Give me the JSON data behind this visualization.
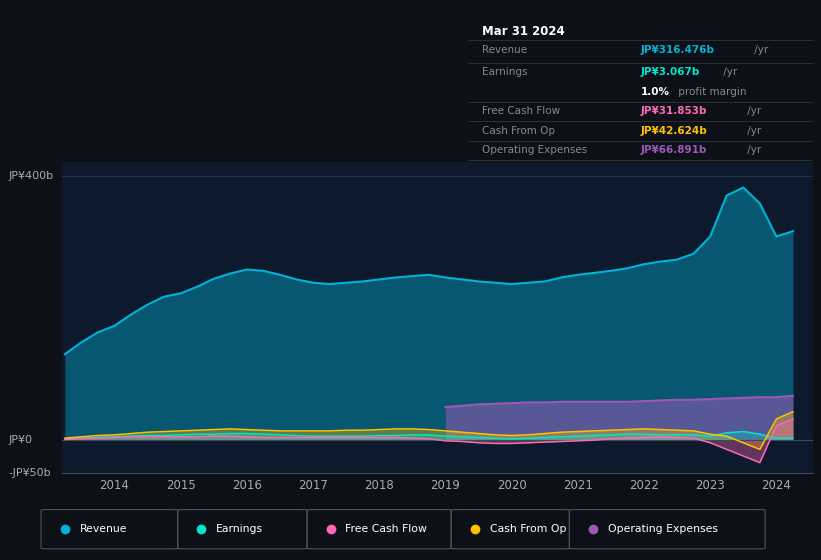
{
  "background_color": "#0d1117",
  "plot_bg_color": "#0d1a2d",
  "ylim": [
    -50,
    420
  ],
  "xlim_start": 2013.2,
  "xlim_end": 2024.55,
  "x_ticks": [
    2014,
    2015,
    2016,
    2017,
    2018,
    2019,
    2020,
    2021,
    2022,
    2023,
    2024
  ],
  "colors": {
    "revenue": "#00b4d8",
    "earnings": "#00e5cc",
    "free_cash_flow": "#ff69b4",
    "cash_from_op": "#ffc300",
    "operating_expenses": "#9b59b6"
  },
  "legend_items": [
    "Revenue",
    "Earnings",
    "Free Cash Flow",
    "Cash From Op",
    "Operating Expenses"
  ],
  "legend_colors": [
    "#00b4d8",
    "#00e5cc",
    "#ff69b4",
    "#ffc300",
    "#9b59b6"
  ],
  "info_box": {
    "date": "Mar 31 2024",
    "revenue_label": "Revenue",
    "revenue_value": "JP¥316.476b",
    "earnings_label": "Earnings",
    "earnings_value": "JP¥3.067b",
    "profit_pct": "1.0%",
    "profit_text": " profit margin",
    "fcf_label": "Free Cash Flow",
    "fcf_value": "JP¥31.853b",
    "cfo_label": "Cash From Op",
    "cfo_value": "JP¥42.624b",
    "opex_label": "Operating Expenses",
    "opex_value": "JP¥66.891b"
  },
  "revenue_x": [
    2013.25,
    2013.5,
    2013.75,
    2014.0,
    2014.25,
    2014.5,
    2014.75,
    2015.0,
    2015.25,
    2015.5,
    2015.75,
    2016.0,
    2016.25,
    2016.5,
    2016.75,
    2017.0,
    2017.25,
    2017.5,
    2017.75,
    2018.0,
    2018.25,
    2018.5,
    2018.75,
    2019.0,
    2019.25,
    2019.5,
    2019.75,
    2020.0,
    2020.25,
    2020.5,
    2020.75,
    2021.0,
    2021.25,
    2021.5,
    2021.75,
    2022.0,
    2022.25,
    2022.5,
    2022.75,
    2023.0,
    2023.25,
    2023.5,
    2023.75,
    2024.0,
    2024.25
  ],
  "revenue_y": [
    130,
    148,
    163,
    173,
    190,
    205,
    217,
    222,
    232,
    244,
    252,
    258,
    256,
    250,
    243,
    238,
    236,
    238,
    240,
    243,
    246,
    248,
    250,
    246,
    243,
    240,
    238,
    236,
    238,
    240,
    246,
    250,
    253,
    256,
    260,
    266,
    270,
    273,
    282,
    308,
    370,
    382,
    358,
    308,
    316
  ],
  "earnings_x": [
    2013.25,
    2013.5,
    2013.75,
    2014.0,
    2014.25,
    2014.5,
    2014.75,
    2015.0,
    2015.25,
    2015.5,
    2015.75,
    2016.0,
    2016.25,
    2016.5,
    2016.75,
    2017.0,
    2017.25,
    2017.5,
    2017.75,
    2018.0,
    2018.25,
    2018.5,
    2018.75,
    2019.0,
    2019.25,
    2019.5,
    2019.75,
    2020.0,
    2020.25,
    2020.5,
    2020.75,
    2021.0,
    2021.25,
    2021.5,
    2021.75,
    2022.0,
    2022.25,
    2022.5,
    2022.75,
    2023.0,
    2023.25,
    2023.5,
    2023.75,
    2024.0,
    2024.25
  ],
  "earnings_y": [
    2,
    3,
    4,
    5,
    6,
    7,
    7,
    8,
    9,
    9,
    10,
    10,
    9,
    8,
    7,
    6,
    6,
    6,
    6,
    7,
    7,
    8,
    8,
    6,
    5,
    4,
    3,
    2,
    3,
    4,
    5,
    6,
    7,
    8,
    9,
    9,
    8,
    8,
    8,
    6,
    11,
    13,
    9,
    3,
    3
  ],
  "fcf_x": [
    2013.25,
    2013.5,
    2013.75,
    2014.0,
    2014.25,
    2014.5,
    2014.75,
    2015.0,
    2015.25,
    2015.5,
    2015.75,
    2016.0,
    2016.25,
    2016.5,
    2016.75,
    2017.0,
    2017.25,
    2017.5,
    2017.75,
    2018.0,
    2018.25,
    2018.5,
    2018.75,
    2019.0,
    2019.25,
    2019.5,
    2019.75,
    2020.0,
    2020.25,
    2020.5,
    2020.75,
    2021.0,
    2021.25,
    2021.5,
    2021.75,
    2022.0,
    2022.25,
    2022.5,
    2022.75,
    2023.0,
    2023.25,
    2023.5,
    2023.75,
    2024.0,
    2024.25
  ],
  "fcf_y": [
    1,
    2,
    3,
    4,
    5,
    5,
    5,
    5,
    5,
    6,
    6,
    5,
    4,
    4,
    4,
    4,
    4,
    4,
    4,
    4,
    4,
    3,
    2,
    -1,
    -2,
    -4,
    -5,
    -5,
    -4,
    -3,
    -2,
    -1,
    0,
    2,
    3,
    4,
    5,
    4,
    3,
    -4,
    -14,
    -24,
    -34,
    22,
    32
  ],
  "cfo_x": [
    2013.25,
    2013.5,
    2013.75,
    2014.0,
    2014.25,
    2014.5,
    2014.75,
    2015.0,
    2015.25,
    2015.5,
    2015.75,
    2016.0,
    2016.25,
    2016.5,
    2016.75,
    2017.0,
    2017.25,
    2017.5,
    2017.75,
    2018.0,
    2018.25,
    2018.5,
    2018.75,
    2019.0,
    2019.25,
    2019.5,
    2019.75,
    2020.0,
    2020.25,
    2020.5,
    2020.75,
    2021.0,
    2021.25,
    2021.5,
    2021.75,
    2022.0,
    2022.25,
    2022.5,
    2022.75,
    2023.0,
    2023.25,
    2023.5,
    2023.75,
    2024.0,
    2024.25
  ],
  "cfo_y": [
    3,
    5,
    7,
    8,
    10,
    12,
    13,
    14,
    15,
    16,
    17,
    16,
    15,
    14,
    14,
    14,
    14,
    15,
    15,
    16,
    17,
    17,
    16,
    14,
    12,
    10,
    8,
    7,
    8,
    10,
    12,
    13,
    14,
    15,
    16,
    17,
    16,
    15,
    14,
    9,
    6,
    -4,
    -14,
    32,
    43
  ],
  "opex_x": [
    2019.0,
    2019.25,
    2019.5,
    2019.75,
    2020.0,
    2020.25,
    2020.5,
    2020.75,
    2021.0,
    2021.25,
    2021.5,
    2021.75,
    2022.0,
    2022.25,
    2022.5,
    2022.75,
    2023.0,
    2023.25,
    2023.5,
    2023.75,
    2024.0,
    2024.25
  ],
  "opex_y": [
    50,
    52,
    54,
    55,
    56,
    57,
    57,
    58,
    58,
    58,
    58,
    58,
    59,
    60,
    61,
    61,
    62,
    63,
    64,
    65,
    65,
    67
  ]
}
